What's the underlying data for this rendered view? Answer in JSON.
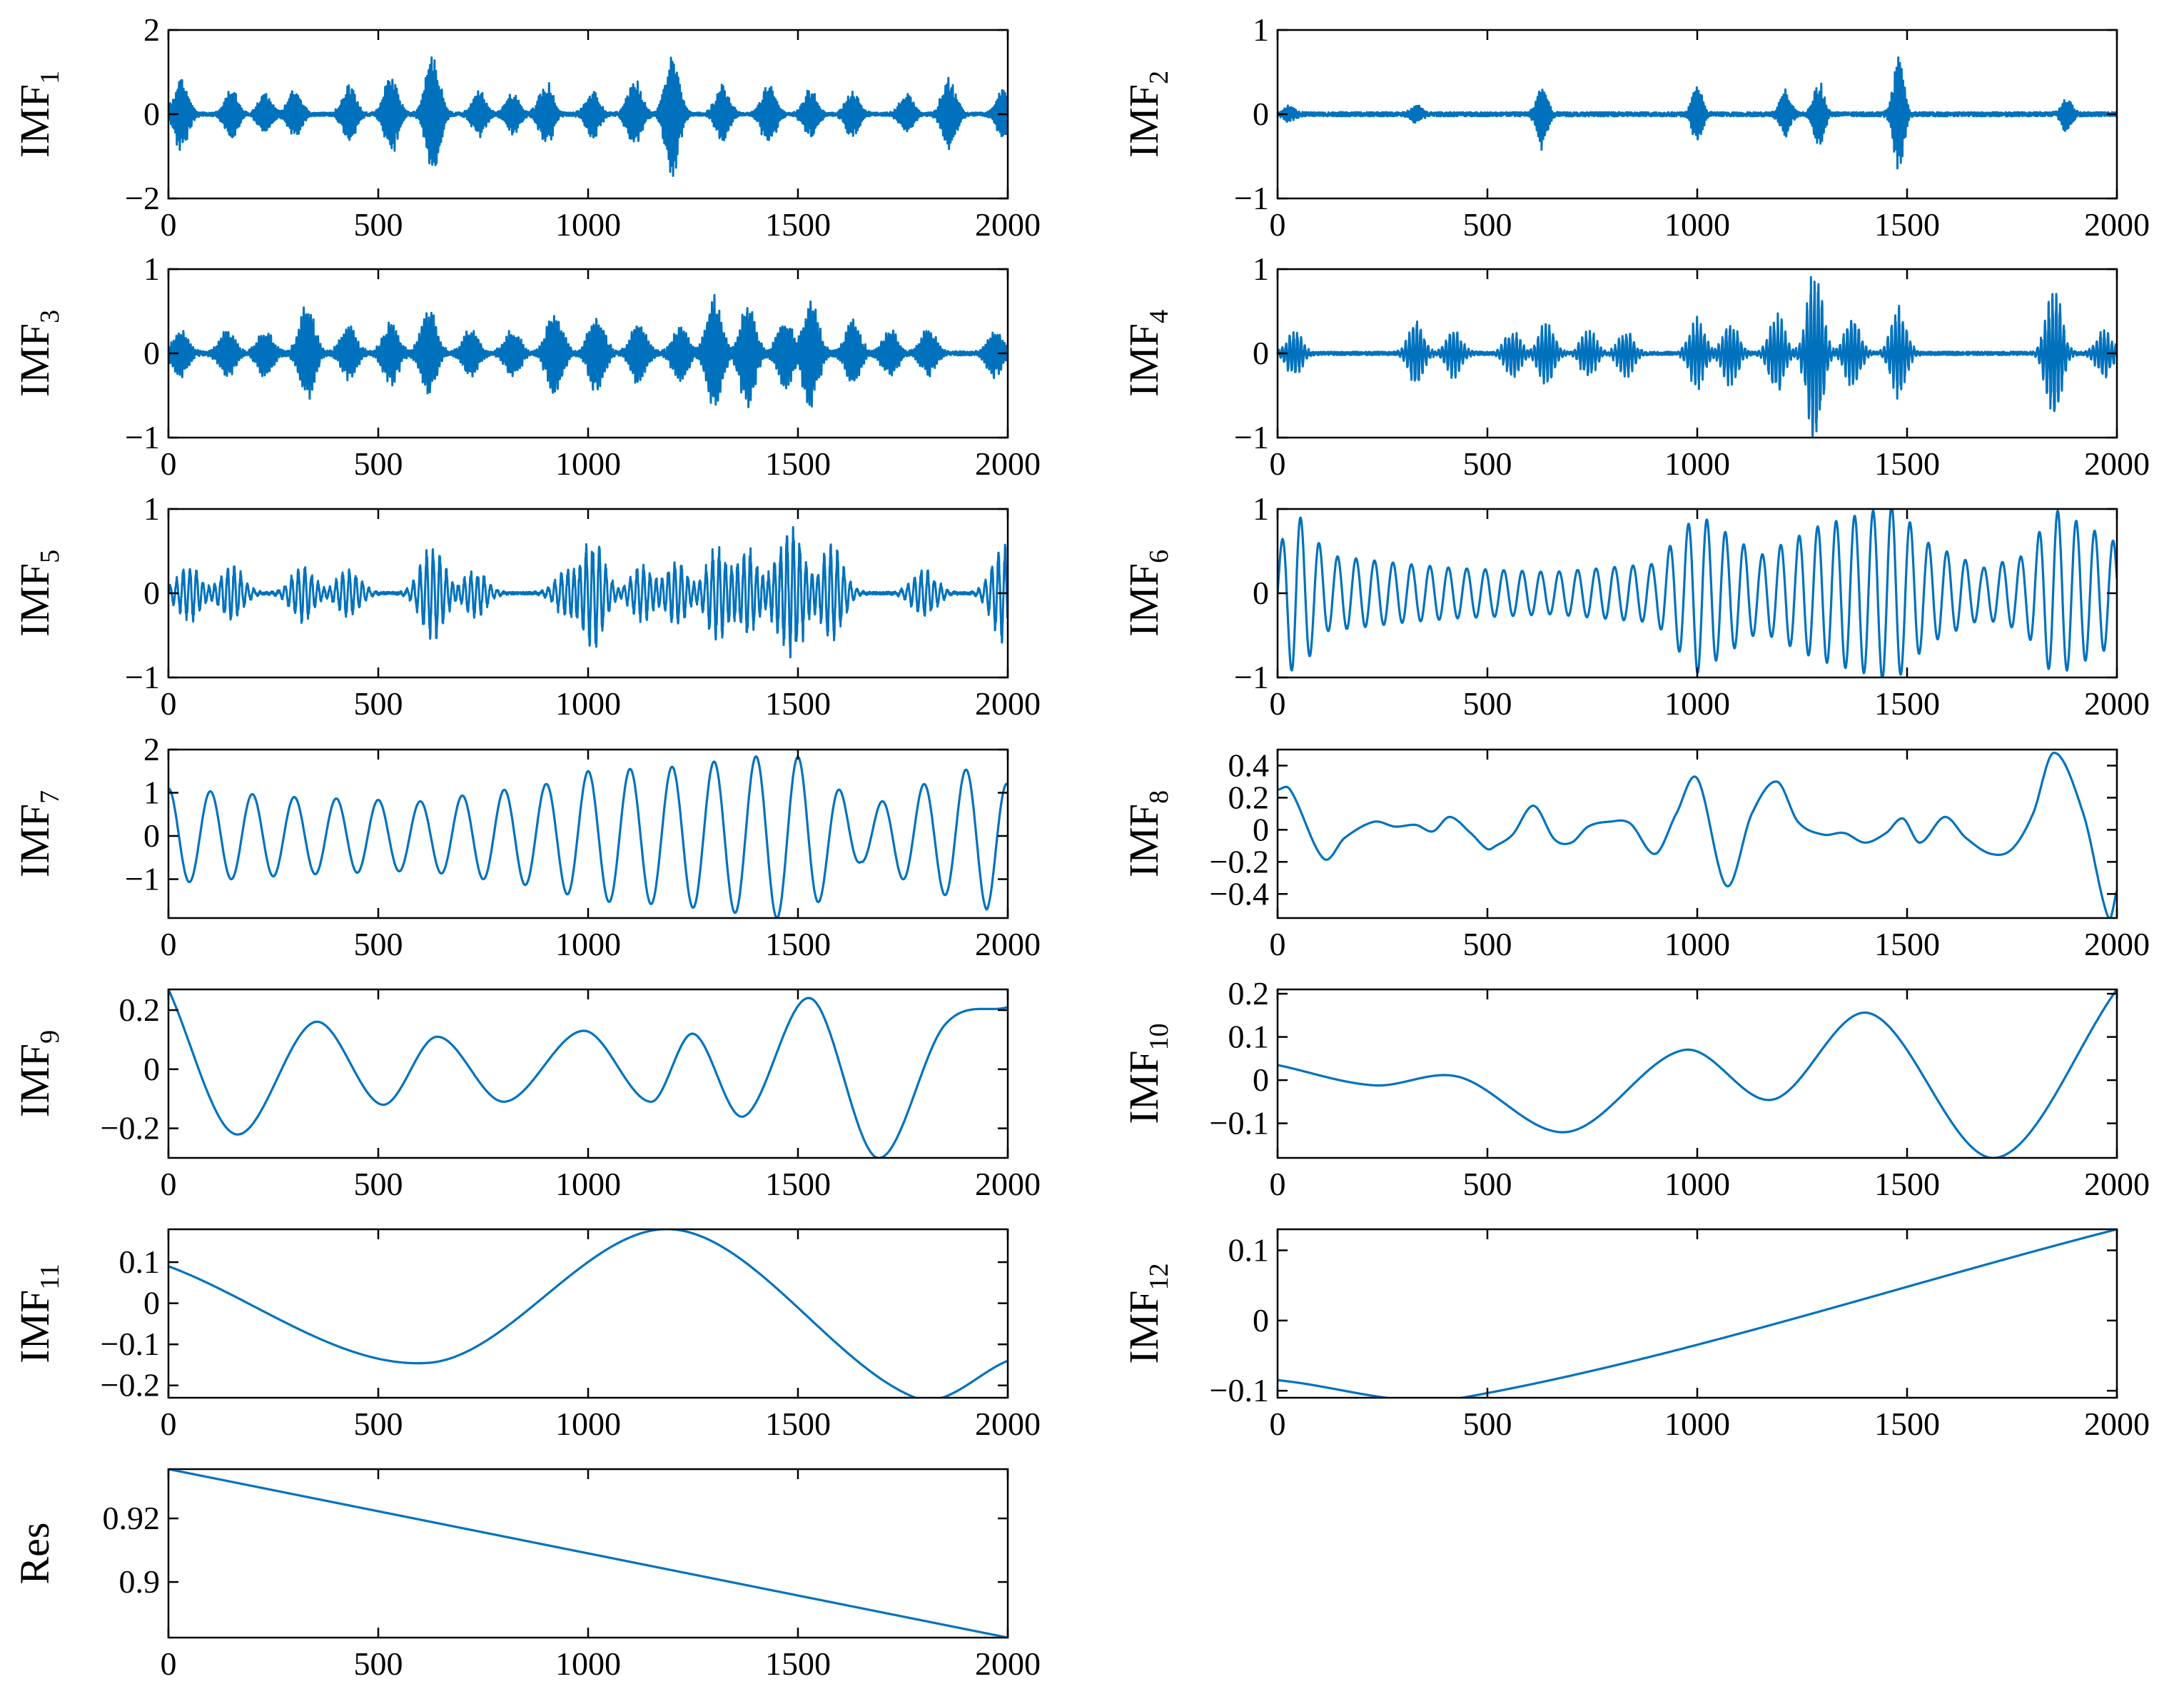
{
  "colors": {
    "line": "#0072BD",
    "axis": "#000000",
    "background": "#ffffff"
  },
  "chart_data": [
    {
      "type": "line",
      "ylabel": "IMF",
      "ylabel_sub": "1",
      "xlim": [
        0,
        2000
      ],
      "ylim": [
        -2,
        2
      ],
      "xticks": [
        0,
        500,
        1000,
        1500,
        2000
      ],
      "xtick_labels": [
        "0",
        "500",
        "1000",
        "1500",
        "2000"
      ],
      "yticks": [
        -2,
        0,
        2
      ],
      "ytick_labels": [
        "−2",
        "0",
        "2"
      ],
      "series": [
        {
          "name": "IMF1",
          "style": "bursts",
          "centers": [
            30,
            150,
            230,
            300,
            430,
            530,
            630,
            740,
            820,
            900,
            1010,
            1110,
            1200,
            1320,
            1430,
            1530,
            1630,
            1760,
            1860,
            1990
          ],
          "amps": [
            0.9,
            0.6,
            0.5,
            0.6,
            0.7,
            1.0,
            1.5,
            0.6,
            0.5,
            0.8,
            0.6,
            0.9,
            1.5,
            0.7,
            0.8,
            0.6,
            0.6,
            0.5,
            0.9,
            0.6
          ],
          "width": 16,
          "freq": 0.9,
          "noise": 0.04
        }
      ]
    },
    {
      "type": "line",
      "ylabel": "IMF",
      "ylabel_sub": "2",
      "xlim": [
        0,
        2000
      ],
      "ylim": [
        -1,
        1
      ],
      "xticks": [
        0,
        500,
        1000,
        1500,
        2000
      ],
      "xtick_labels": [
        "0",
        "500",
        "1000",
        "1500",
        "2000"
      ],
      "yticks": [
        -1,
        0,
        1
      ],
      "ytick_labels": [
        "−1",
        "0",
        "1"
      ],
      "series": [
        {
          "name": "IMF2",
          "style": "bursts",
          "centers": [
            30,
            330,
            630,
            1000,
            1210,
            1290,
            1480,
            1880
          ],
          "amps": [
            0.1,
            0.12,
            0.42,
            0.35,
            0.3,
            0.4,
            0.72,
            0.2
          ],
          "width": 12,
          "freq": 0.8,
          "noise": 0.025
        }
      ]
    },
    {
      "type": "line",
      "ylabel": "IMF",
      "ylabel_sub": "3",
      "xlim": [
        0,
        2000
      ],
      "ylim": [
        -1,
        1
      ],
      "xticks": [
        0,
        500,
        1000,
        1500,
        2000
      ],
      "xtick_labels": [
        "0",
        "500",
        "1000",
        "1500",
        "2000"
      ],
      "yticks": [
        -1,
        0,
        1
      ],
      "ytick_labels": [
        "−1",
        "0",
        "1"
      ],
      "series": [
        {
          "name": "IMF3",
          "style": "bursts",
          "centers": [
            30,
            140,
            230,
            330,
            430,
            530,
            620,
            720,
            820,
            920,
            1020,
            1120,
            1220,
            1300,
            1380,
            1470,
            1530,
            1630,
            1720,
            1810,
            1970
          ],
          "amps": [
            0.3,
            0.3,
            0.3,
            0.6,
            0.35,
            0.4,
            0.55,
            0.3,
            0.3,
            0.55,
            0.5,
            0.4,
            0.35,
            0.7,
            0.65,
            0.45,
            0.7,
            0.4,
            0.3,
            0.3,
            0.3
          ],
          "width": 18,
          "freq": 0.55,
          "noise": 0.025
        }
      ]
    },
    {
      "type": "line",
      "ylabel": "IMF",
      "ylabel_sub": "4",
      "xlim": [
        0,
        2000
      ],
      "ylim": [
        -1,
        1
      ],
      "xticks": [
        0,
        500,
        1000,
        1500,
        2000
      ],
      "xtick_labels": [
        "0",
        "500",
        "1000",
        "1500",
        "2000"
      ],
      "yticks": [
        -1,
        0,
        1
      ],
      "ytick_labels": [
        "−1",
        "0",
        "1"
      ],
      "series": [
        {
          "name": "IMF4",
          "style": "bursts",
          "centers": [
            40,
            330,
            420,
            560,
            640,
            740,
            830,
            1000,
            1080,
            1190,
            1280,
            1370,
            1480,
            1850,
            1970
          ],
          "amps": [
            0.3,
            0.4,
            0.3,
            0.3,
            0.4,
            0.3,
            0.3,
            0.45,
            0.4,
            0.5,
            1.1,
            0.45,
            0.55,
            0.85,
            0.3
          ],
          "width": 18,
          "freq": 0.35,
          "noise": 0.02
        }
      ]
    },
    {
      "type": "line",
      "ylabel": "IMF",
      "ylabel_sub": "5",
      "xlim": [
        0,
        2000
      ],
      "ylim": [
        -1,
        1
      ],
      "xticks": [
        0,
        500,
        1000,
        1500,
        2000
      ],
      "xtick_labels": [
        "0",
        "500",
        "1000",
        "1500",
        "2000"
      ],
      "yticks": [
        -1,
        0,
        1
      ],
      "ytick_labels": [
        "−1",
        "0",
        "1"
      ],
      "series": [
        {
          "name": "IMF5",
          "style": "bursts",
          "centers": [
            50,
            150,
            320,
            430,
            630,
            730,
            950,
            1010,
            1130,
            1210,
            1310,
            1380,
            1460,
            1490,
            1580,
            1800,
            1990
          ],
          "amps": [
            0.35,
            0.35,
            0.35,
            0.3,
            0.6,
            0.3,
            0.3,
            0.7,
            0.35,
            0.4,
            0.6,
            0.55,
            0.5,
            0.8,
            0.6,
            0.3,
            0.6
          ],
          "width": 28,
          "freq": 0.2,
          "noise": 0.015
        }
      ]
    },
    {
      "type": "line",
      "ylabel": "IMF",
      "ylabel_sub": "6",
      "xlim": [
        0,
        2000
      ],
      "ylim": [
        -1,
        1
      ],
      "xticks": [
        0,
        500,
        1000,
        1500,
        2000
      ],
      "xtick_labels": [
        "0",
        "500",
        "1000",
        "1500",
        "2000"
      ],
      "yticks": [
        -1,
        0,
        1
      ],
      "ytick_labels": [
        "−1",
        "0",
        "1"
      ],
      "series": [
        {
          "name": "IMF6",
          "style": "oscillation",
          "period": 44,
          "amp_points": [
            [
              0,
              0.5
            ],
            [
              40,
              1.0
            ],
            [
              120,
              0.45
            ],
            [
              300,
              0.35
            ],
            [
              420,
              0.3
            ],
            [
              650,
              0.25
            ],
            [
              900,
              0.35
            ],
            [
              1000,
              0.95
            ],
            [
              1150,
              0.45
            ],
            [
              1290,
              0.8
            ],
            [
              1470,
              1.05
            ],
            [
              1550,
              0.6
            ],
            [
              1680,
              0.3
            ],
            [
              1780,
              0.45
            ],
            [
              1850,
              1.0
            ],
            [
              2000,
              0.6
            ]
          ]
        }
      ]
    },
    {
      "type": "line",
      "ylabel": "IMF",
      "ylabel_sub": "7",
      "xlim": [
        0,
        2000
      ],
      "ylim": [
        -1.9,
        2
      ],
      "xticks": [
        0,
        500,
        1000,
        1500,
        2000
      ],
      "xtick_labels": [
        "0",
        "500",
        "1000",
        "1500",
        "2000"
      ],
      "yticks": [
        -1,
        0,
        1,
        2
      ],
      "ytick_labels": [
        "−1",
        "0",
        "1",
        "2"
      ],
      "series": [
        {
          "name": "IMF7",
          "style": "oscillation",
          "period": 100,
          "phase": 0.25,
          "amp_points": [
            [
              0,
              1.1
            ],
            [
              300,
              0.9
            ],
            [
              600,
              0.8
            ],
            [
              900,
              1.2
            ],
            [
              1000,
              1.5
            ],
            [
              1200,
              1.6
            ],
            [
              1450,
              1.9
            ],
            [
              1520,
              1.8
            ],
            [
              1650,
              0.6
            ],
            [
              1800,
              1.2
            ],
            [
              1950,
              1.7
            ],
            [
              2000,
              1.2
            ]
          ]
        }
      ]
    },
    {
      "type": "line",
      "ylabel": "IMF",
      "ylabel_sub": "8",
      "xlim": [
        0,
        2000
      ],
      "ylim": [
        -0.55,
        0.5
      ],
      "xticks": [
        0,
        500,
        1000,
        1500,
        2000
      ],
      "xtick_labels": [
        "0",
        "500",
        "1000",
        "1500",
        "2000"
      ],
      "yticks": [
        -0.4,
        -0.2,
        0,
        0.2,
        0.4
      ],
      "ytick_labels": [
        "−0.4",
        "−0.2",
        "0",
        "0.2",
        "0.4"
      ],
      "series": [
        {
          "name": "IMF8",
          "style": "points",
          "x": [
            0,
            30,
            110,
            160,
            230,
            280,
            330,
            370,
            410,
            460,
            500,
            520,
            560,
            610,
            660,
            700,
            740,
            790,
            840,
            900,
            950,
            1000,
            1070,
            1130,
            1190,
            1240,
            1300,
            1350,
            1400,
            1450,
            1490,
            1530,
            1590,
            1640,
            1700,
            1750,
            1800,
            1850,
            1920,
            1980,
            2000
          ],
          "y": [
            0.25,
            0.25,
            -0.18,
            -0.05,
            0.05,
            0.02,
            0.03,
            -0.01,
            0.08,
            -0.02,
            -0.12,
            -0.1,
            -0.03,
            0.15,
            -0.06,
            -0.08,
            0.02,
            0.05,
            0.04,
            -0.15,
            0.1,
            0.32,
            -0.35,
            0.1,
            0.3,
            0.05,
            -0.03,
            -0.02,
            -0.08,
            -0.02,
            0.07,
            -0.08,
            0.08,
            -0.05,
            -0.15,
            -0.12,
            0.1,
            0.48,
            0.1,
            -0.55,
            -0.38
          ]
        }
      ]
    },
    {
      "type": "line",
      "ylabel": "IMF",
      "ylabel_sub": "9",
      "xlim": [
        0,
        2000
      ],
      "ylim": [
        -0.3,
        0.27
      ],
      "xticks": [
        0,
        500,
        1000,
        1500,
        2000
      ],
      "xtick_labels": [
        "0",
        "500",
        "1000",
        "1500",
        "2000"
      ],
      "yticks": [
        -0.2,
        0,
        0.2
      ],
      "ytick_labels": [
        "−0.2",
        "0",
        "0.2"
      ],
      "series": [
        {
          "name": "IMF9",
          "style": "points",
          "x": [
            0,
            160,
            350,
            510,
            640,
            800,
            990,
            1150,
            1250,
            1370,
            1530,
            1690,
            1850,
            2000
          ],
          "y": [
            0.27,
            -0.22,
            0.16,
            -0.12,
            0.11,
            -0.11,
            0.13,
            -0.11,
            0.12,
            -0.16,
            0.24,
            -0.3,
            0.15,
            0.21
          ]
        }
      ]
    },
    {
      "type": "line",
      "ylabel": "IMF",
      "ylabel_sub": "10",
      "xlim": [
        0,
        2000
      ],
      "ylim": [
        -0.18,
        0.21
      ],
      "xticks": [
        0,
        500,
        1000,
        1500,
        2000
      ],
      "xtick_labels": [
        "0",
        "500",
        "1000",
        "1500",
        "2000"
      ],
      "yticks": [
        -0.1,
        0,
        0.1,
        0.2
      ],
      "ytick_labels": [
        "−0.1",
        "0",
        "0.1",
        "0.2"
      ],
      "series": [
        {
          "name": "IMF10",
          "style": "points",
          "x": [
            0,
            230,
            430,
            690,
            970,
            1180,
            1410,
            1710,
            2000
          ],
          "y": [
            0.035,
            -0.012,
            0.008,
            -0.12,
            0.07,
            -0.045,
            0.155,
            -0.18,
            0.21
          ]
        }
      ]
    },
    {
      "type": "line",
      "ylabel": "IMF",
      "ylabel_sub": "11",
      "xlim": [
        0,
        2000
      ],
      "ylim": [
        -0.23,
        0.18
      ],
      "xticks": [
        0,
        500,
        1000,
        1500,
        2000
      ],
      "xtick_labels": [
        "0",
        "500",
        "1000",
        "1500",
        "2000"
      ],
      "yticks": [
        -0.2,
        -0.1,
        0,
        0.1
      ],
      "ytick_labels": [
        "−0.2",
        "−0.1",
        "0",
        "0.1"
      ],
      "series": [
        {
          "name": "IMF11",
          "style": "points",
          "x": [
            0,
            620,
            1200,
            1780,
            2000
          ],
          "y": [
            0.09,
            -0.145,
            0.18,
            -0.23,
            -0.14
          ]
        }
      ]
    },
    {
      "type": "line",
      "ylabel": "IMF",
      "ylabel_sub": "12",
      "xlim": [
        0,
        2000
      ],
      "ylim": [
        -0.11,
        0.13
      ],
      "xticks": [
        0,
        500,
        1000,
        1500,
        2000
      ],
      "xtick_labels": [
        "0",
        "500",
        "1000",
        "1500",
        "2000"
      ],
      "yticks": [
        -0.1,
        0,
        0.1
      ],
      "ytick_labels": [
        "−0.1",
        "0",
        "0.1"
      ],
      "series": [
        {
          "name": "IMF12",
          "style": "points",
          "x": [
            0,
            440,
            2000
          ],
          "y": [
            -0.085,
            -0.11,
            0.13
          ]
        }
      ]
    },
    {
      "type": "line",
      "ylabel": "Res",
      "ylabel_sub": "",
      "xlim": [
        0,
        2000
      ],
      "ylim": [
        0.8825,
        0.9355
      ],
      "xticks": [
        0,
        500,
        1000,
        1500,
        2000
      ],
      "xtick_labels": [
        "0",
        "500",
        "1000",
        "1500",
        "2000"
      ],
      "yticks": [
        0.9,
        0.92
      ],
      "ytick_labels": [
        "0.9",
        "0.92"
      ],
      "series": [
        {
          "name": "Res",
          "style": "points",
          "x": [
            0,
            2000
          ],
          "y": [
            0.9355,
            0.8825
          ]
        }
      ]
    }
  ]
}
